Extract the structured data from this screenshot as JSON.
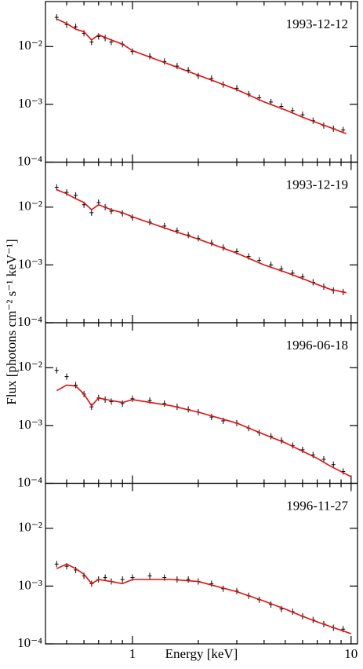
{
  "ylabel": "Flux [photons cm⁻² s⁻¹ keV⁻¹]",
  "chart_data": [
    {
      "type": "scatter",
      "title": "1993-12-12",
      "log_x": true,
      "log_y": true,
      "xlim": [
        0.4,
        10.7
      ],
      "ylim": [
        0.0001,
        0.06
      ],
      "xticks": [
        1,
        10
      ],
      "xminorticks": [
        0.5,
        0.6,
        0.7,
        0.8,
        0.9,
        2,
        3,
        4,
        5,
        6,
        7,
        8,
        9
      ],
      "yticks": [
        {
          "value": 0.0001,
          "label": "10⁻⁴"
        },
        {
          "value": 0.001,
          "label": "10⁻³"
        },
        {
          "value": 0.01,
          "label": "10⁻²"
        }
      ],
      "series": [
        {
          "style": "points",
          "color": "#000000",
          "x": [
            0.45,
            0.5,
            0.55,
            0.6,
            0.65,
            0.7,
            0.75,
            0.8,
            0.9,
            1.0,
            1.2,
            1.4,
            1.6,
            1.8,
            2.0,
            2.3,
            2.6,
            3.0,
            3.4,
            3.8,
            4.3,
            4.8,
            5.4,
            6.0,
            6.7,
            7.5,
            8.3,
            9.2
          ],
          "values": [
            0.032,
            0.024,
            0.022,
            0.017,
            0.012,
            0.015,
            0.014,
            0.012,
            0.011,
            0.0082,
            0.0068,
            0.0055,
            0.0046,
            0.0039,
            0.0031,
            0.0028,
            0.0022,
            0.0019,
            0.0015,
            0.0013,
            0.0011,
            0.00092,
            0.00078,
            0.00066,
            0.00052,
            0.00043,
            0.00038,
            0.00036
          ]
        },
        {
          "style": "line",
          "color": "#e01010",
          "x": [
            0.45,
            0.5,
            0.55,
            0.6,
            0.65,
            0.7,
            0.8,
            0.9,
            1,
            1.5,
            2,
            3,
            4,
            5,
            6,
            7,
            8,
            9.5
          ],
          "values": [
            0.03,
            0.025,
            0.02,
            0.018,
            0.013,
            0.016,
            0.013,
            0.011,
            0.0085,
            0.0048,
            0.0032,
            0.0018,
            0.0011,
            0.0008,
            0.0006,
            0.00048,
            0.0004,
            0.00031
          ]
        }
      ]
    },
    {
      "type": "scatter",
      "title": "1993-12-19",
      "log_x": true,
      "log_y": true,
      "xlim": [
        0.4,
        10.7
      ],
      "ylim": [
        0.0001,
        0.06
      ],
      "xticks": [
        1,
        10
      ],
      "xminorticks": [
        0.5,
        0.6,
        0.7,
        0.8,
        0.9,
        2,
        3,
        4,
        5,
        6,
        7,
        8,
        9
      ],
      "yticks": [
        {
          "value": 0.0001,
          "label": "10⁻⁴"
        },
        {
          "value": 0.001,
          "label": "10⁻³"
        },
        {
          "value": 0.01,
          "label": "10⁻²"
        }
      ],
      "series": [
        {
          "style": "points",
          "color": "#000000",
          "x": [
            0.45,
            0.5,
            0.55,
            0.6,
            0.65,
            0.7,
            0.75,
            0.8,
            0.9,
            1.0,
            1.2,
            1.4,
            1.6,
            1.8,
            2.0,
            2.3,
            2.6,
            3.0,
            3.4,
            3.8,
            4.3,
            4.8,
            5.4,
            6.0,
            6.7,
            7.5,
            8.3,
            9.2
          ],
          "values": [
            0.022,
            0.018,
            0.016,
            0.011,
            0.008,
            0.012,
            0.01,
            0.0085,
            0.0078,
            0.0066,
            0.0055,
            0.0047,
            0.0039,
            0.0033,
            0.0029,
            0.0024,
            0.002,
            0.0017,
            0.0014,
            0.0012,
            0.001,
            0.00085,
            0.00072,
            0.00062,
            0.0005,
            0.00042,
            0.00036,
            0.00034
          ]
        },
        {
          "style": "line",
          "color": "#e01010",
          "x": [
            0.45,
            0.5,
            0.55,
            0.6,
            0.65,
            0.7,
            0.8,
            0.9,
            1,
            1.5,
            2,
            3,
            4,
            5,
            6,
            7,
            8,
            9.5
          ],
          "values": [
            0.02,
            0.017,
            0.014,
            0.012,
            0.009,
            0.011,
            0.009,
            0.008,
            0.0068,
            0.004,
            0.0028,
            0.0016,
            0.001,
            0.00075,
            0.00058,
            0.00046,
            0.00038,
            0.00033
          ]
        }
      ]
    },
    {
      "type": "scatter",
      "title": "1996-06-18",
      "log_x": true,
      "log_y": true,
      "xlim": [
        0.4,
        10.7
      ],
      "ylim": [
        0.0001,
        0.06
      ],
      "xticks": [
        1,
        10
      ],
      "xminorticks": [
        0.5,
        0.6,
        0.7,
        0.8,
        0.9,
        2,
        3,
        4,
        5,
        6,
        7,
        8,
        9
      ],
      "yticks": [
        {
          "value": 0.0001,
          "label": "10⁻⁴"
        },
        {
          "value": 0.001,
          "label": "10⁻³"
        },
        {
          "value": 0.01,
          "label": "10⁻²"
        }
      ],
      "series": [
        {
          "style": "points",
          "color": "#000000",
          "x": [
            0.45,
            0.5,
            0.55,
            0.6,
            0.65,
            0.7,
            0.75,
            0.8,
            0.9,
            1.0,
            1.2,
            1.4,
            1.6,
            1.8,
            2.0,
            2.3,
            2.6,
            3.0,
            3.4,
            3.8,
            4.3,
            4.8,
            5.4,
            6.0,
            6.7,
            7.5,
            8.3,
            9.2
          ],
          "values": [
            0.009,
            0.007,
            0.005,
            0.0035,
            0.0021,
            0.003,
            0.0028,
            0.0026,
            0.0024,
            0.0029,
            0.0027,
            0.0024,
            0.0021,
            0.0019,
            0.0017,
            0.0014,
            0.0012,
            0.0011,
            0.0009,
            0.00075,
            0.00065,
            0.00055,
            0.00045,
            0.00038,
            0.00031,
            0.00026,
            0.00021,
            0.00016
          ]
        },
        {
          "style": "line",
          "color": "#e01010",
          "x": [
            0.45,
            0.5,
            0.55,
            0.6,
            0.65,
            0.7,
            0.8,
            0.9,
            1,
            1.5,
            2,
            3,
            4,
            5,
            6,
            7,
            8,
            10
          ],
          "values": [
            0.004,
            0.005,
            0.0048,
            0.0035,
            0.0022,
            0.003,
            0.0027,
            0.0025,
            0.0028,
            0.0022,
            0.0017,
            0.0011,
            0.0007,
            0.0005,
            0.00036,
            0.00027,
            0.0002,
            0.00013
          ]
        }
      ]
    },
    {
      "type": "scatter",
      "title": "1996-11-27",
      "log_x": true,
      "log_y": true,
      "xlim": [
        0.4,
        10.7
      ],
      "ylim": [
        0.0001,
        0.06
      ],
      "xticks": [
        1,
        10
      ],
      "xminorticks": [
        0.5,
        0.6,
        0.7,
        0.8,
        0.9,
        2,
        3,
        4,
        5,
        6,
        7,
        8,
        9
      ],
      "show_xticklabels": true,
      "xlabel": "Energy [keV]",
      "yticks": [
        {
          "value": 0.0001,
          "label": "10⁻⁴"
        },
        {
          "value": 0.001,
          "label": "10⁻³"
        },
        {
          "value": 0.01,
          "label": "10⁻²"
        }
      ],
      "series": [
        {
          "style": "points",
          "color": "#000000",
          "x": [
            0.45,
            0.5,
            0.55,
            0.6,
            0.65,
            0.7,
            0.75,
            0.8,
            0.9,
            1.0,
            1.2,
            1.4,
            1.6,
            1.8,
            2.0,
            2.3,
            2.6,
            3.0,
            3.4,
            3.8,
            4.3,
            4.8,
            5.4,
            6.0,
            6.7,
            7.5,
            8.3,
            9.2
          ],
          "values": [
            0.0024,
            0.0022,
            0.0019,
            0.0015,
            0.0011,
            0.0013,
            0.0014,
            0.0012,
            0.0013,
            0.0014,
            0.0015,
            0.0014,
            0.0013,
            0.0013,
            0.0012,
            0.0011,
            0.0009,
            0.00082,
            0.00068,
            0.00058,
            0.00048,
            0.0004,
            0.00036,
            0.0003,
            0.00026,
            0.00022,
            0.00019,
            0.00018
          ]
        },
        {
          "style": "line",
          "color": "#e01010",
          "x": [
            0.45,
            0.5,
            0.55,
            0.6,
            0.65,
            0.7,
            0.8,
            0.9,
            1,
            1.5,
            2,
            3,
            4,
            5,
            6,
            7,
            8,
            10
          ],
          "values": [
            0.002,
            0.0024,
            0.002,
            0.0016,
            0.0011,
            0.0013,
            0.0012,
            0.0011,
            0.0013,
            0.0013,
            0.0012,
            0.0008,
            0.00055,
            0.0004,
            0.0003,
            0.00024,
            0.0002,
            0.00015
          ]
        }
      ]
    }
  ]
}
